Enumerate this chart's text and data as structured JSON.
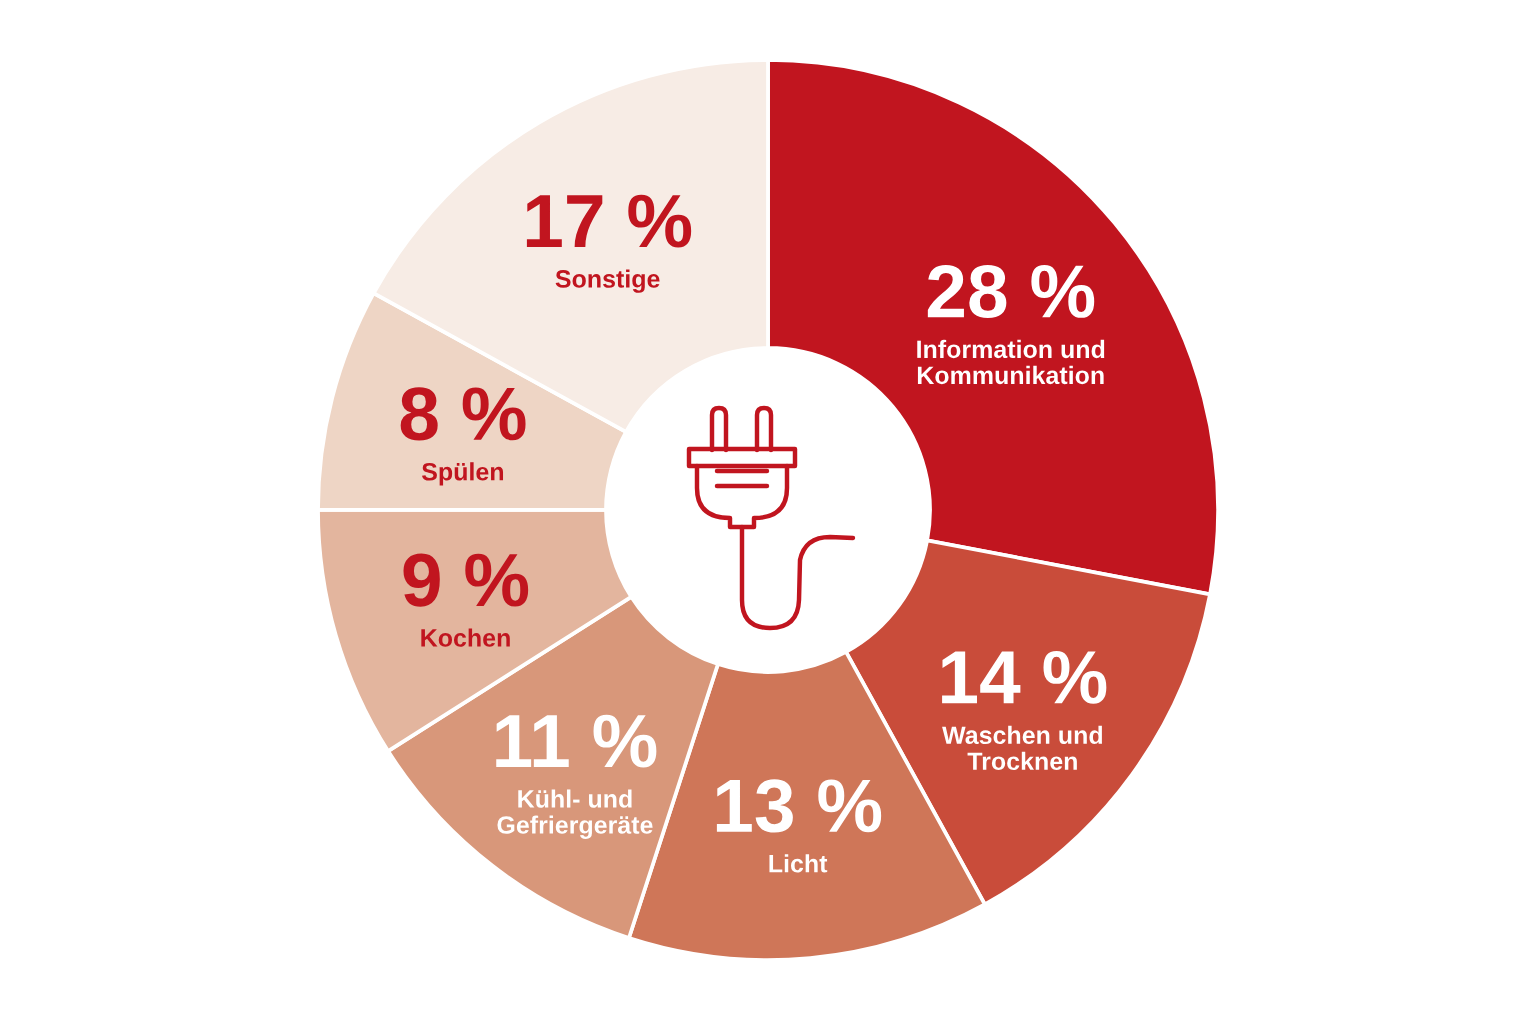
{
  "chart_data": {
    "type": "donut",
    "categories": [
      "Information und\nKommunikation",
      "Waschen und\nTrocknen",
      "Licht",
      "Kühl- und\nGefriergeräte",
      "Kochen",
      "Spülen",
      "Sonstige"
    ],
    "values": [
      28,
      14,
      13,
      11,
      9,
      8,
      17
    ],
    "value_labels": [
      "28 %",
      "14 %",
      "13 %",
      "11 %",
      "9 %",
      "8 %",
      "17 %"
    ],
    "colors": [
      "#c1151f",
      "#c94c3a",
      "#cf7658",
      "#d8977a",
      "#e3b59e",
      "#eed5c5",
      "#f7ece5"
    ]
  }
}
